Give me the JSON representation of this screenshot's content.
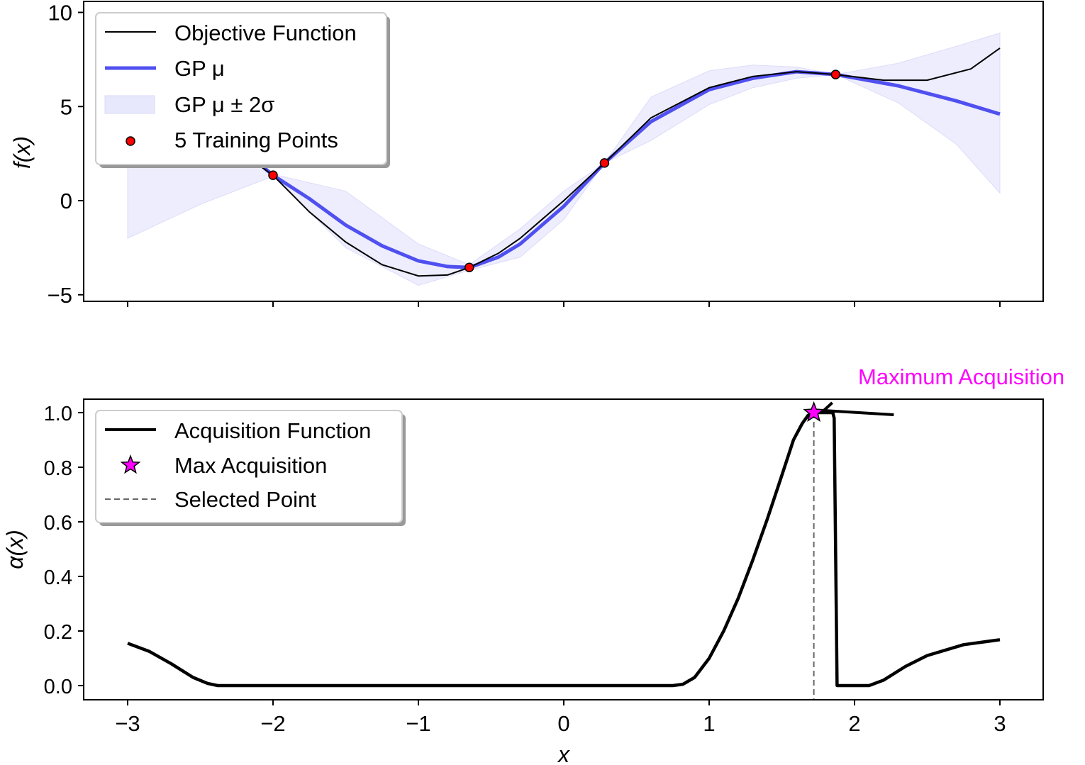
{
  "chart_data": [
    {
      "type": "line",
      "ylabel": "f(x)",
      "xlim": [
        -3.3,
        3.3
      ],
      "ylim": [
        -5.3,
        10.5
      ],
      "yticks": [
        "10",
        "5",
        "0",
        "−5"
      ],
      "ytick_values": [
        10,
        5,
        0,
        -5
      ],
      "xtick_values": [
        -3,
        -2,
        -1,
        0,
        1,
        2,
        3
      ],
      "grid": false,
      "legend_position": "top-left",
      "legend": [
        "Objective Function",
        "GP μ",
        "GP μ ± 2σ",
        "5 Training Points"
      ],
      "colors": {
        "objective": "#000000",
        "gp_mean": "#5050f0",
        "band": "#e8e8fc",
        "points": "#ff0000"
      },
      "objective": {
        "x": [
          -2.1,
          -2,
          -1.75,
          -1.5,
          -1.25,
          -1,
          -0.8,
          -0.65,
          -0.45,
          -0.3,
          0,
          0.28,
          0.6,
          1,
          1.3,
          1.6,
          1.87,
          2.2,
          2.5,
          2.8,
          3
        ],
        "y": [
          1.9,
          1.35,
          -0.6,
          -2.2,
          -3.4,
          -4.0,
          -3.95,
          -3.55,
          -2.8,
          -2.0,
          0,
          2.0,
          4.4,
          6.0,
          6.6,
          6.85,
          6.7,
          6.4,
          6.4,
          7.0,
          8.1
        ]
      },
      "gp_mean": {
        "x": [
          -2.1,
          -2,
          -1.75,
          -1.5,
          -1.25,
          -1,
          -0.8,
          -0.65,
          -0.45,
          -0.3,
          0,
          0.28,
          0.6,
          1,
          1.3,
          1.6,
          1.87,
          2.3,
          2.7,
          3
        ],
        "y": [
          2.0,
          1.35,
          0.1,
          -1.3,
          -2.4,
          -3.2,
          -3.5,
          -3.55,
          -3.0,
          -2.3,
          -0.3,
          2.0,
          4.2,
          5.9,
          6.5,
          6.85,
          6.7,
          6.1,
          5.3,
          4.6
        ]
      },
      "band": {
        "x": [
          -3,
          -2.5,
          -2,
          -1.5,
          -1,
          -0.65,
          -0.3,
          0,
          0.28,
          0.6,
          1,
          1.3,
          1.6,
          1.87,
          2.3,
          2.7,
          3
        ],
        "upper": [
          6.0,
          4.0,
          1.4,
          0.5,
          -2.3,
          -3.4,
          -1.5,
          0.5,
          2.0,
          5.5,
          6.9,
          7.2,
          7.1,
          6.7,
          7.3,
          8.2,
          8.9
        ],
        "lower": [
          -2.0,
          -0.2,
          1.3,
          -2.5,
          -4.5,
          -3.7,
          -3.0,
          -1.0,
          2.0,
          3.2,
          5.1,
          6.0,
          6.5,
          6.7,
          5.2,
          3.0,
          0.4
        ]
      },
      "training_points": {
        "x": [
          -2,
          -0.65,
          0.28,
          1.87,
          -2.5
        ],
        "y": [
          1.35,
          -3.55,
          2.0,
          6.7,
          3.0
        ]
      }
    },
    {
      "type": "line",
      "xlabel": "x",
      "ylabel": "α(x)",
      "xlim": [
        -3.3,
        3.3
      ],
      "ylim": [
        -0.05,
        1.05
      ],
      "xticks": [
        "−3",
        "−2",
        "−1",
        "0",
        "1",
        "2",
        "3"
      ],
      "xtick_values": [
        -3,
        -2,
        -1,
        0,
        1,
        2,
        3
      ],
      "yticks": [
        "0.0",
        "0.2",
        "0.4",
        "0.6",
        "0.8",
        "1.0"
      ],
      "ytick_values": [
        0,
        0.2,
        0.4,
        0.6,
        0.8,
        1.0
      ],
      "grid": false,
      "legend_position": "top-left",
      "legend": [
        "Acquisition Function",
        "Max Acquisition",
        "Selected Point"
      ],
      "colors": {
        "acquisition": "#000000",
        "max": "#ff00ff",
        "selected": "#666666",
        "annotation": "#ff00ff"
      },
      "acquisition": {
        "x": [
          -3,
          -2.85,
          -2.7,
          -2.55,
          -2.45,
          -2.38,
          -2,
          -1,
          0,
          0.75,
          0.82,
          0.9,
          1.0,
          1.1,
          1.2,
          1.3,
          1.4,
          1.5,
          1.58,
          1.64,
          1.68,
          1.72,
          1.8,
          1.85,
          1.86,
          1.87,
          1.88,
          1.95,
          2.1,
          2.2,
          2.35,
          2.5,
          2.75,
          3
        ],
        "y": [
          0.155,
          0.125,
          0.08,
          0.03,
          0.008,
          0,
          0,
          0,
          0,
          0,
          0.005,
          0.03,
          0.1,
          0.2,
          0.32,
          0.46,
          0.61,
          0.77,
          0.9,
          0.96,
          0.99,
          1.0,
          1.0,
          1.0,
          0.98,
          0.5,
          0.0,
          0.0,
          0.0,
          0.02,
          0.07,
          0.11,
          0.15,
          0.168
        ]
      },
      "max_point": {
        "x": 1.72,
        "y": 1.0
      },
      "selected_x": 1.72,
      "annotation": {
        "text": "Maximum Acquisition",
        "xytext": [
          2.27,
          1.07
        ]
      }
    }
  ]
}
